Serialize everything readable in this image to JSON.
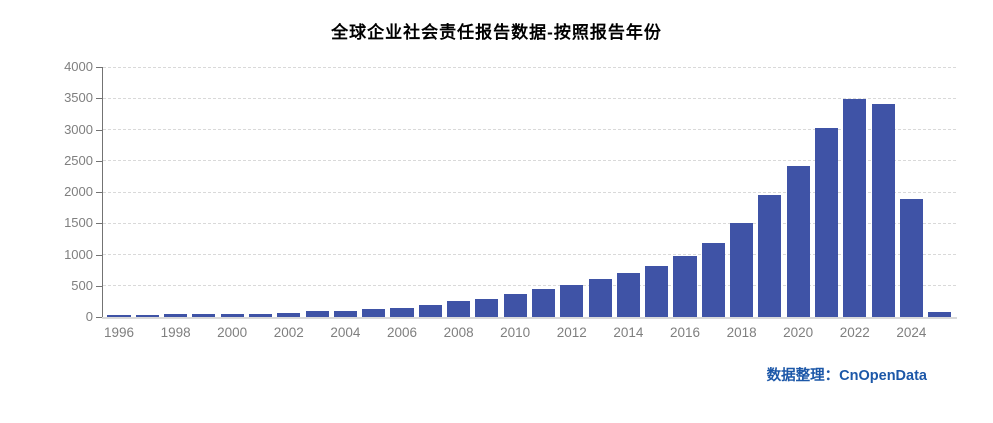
{
  "chart_data": {
    "type": "bar",
    "title": "全球企业社会责任报告数据-按照报告年份",
    "x": [
      1996,
      1997,
      1998,
      1999,
      2000,
      2001,
      2002,
      2003,
      2004,
      2005,
      2006,
      2007,
      2008,
      2009,
      2010,
      2011,
      2012,
      2013,
      2014,
      2015,
      2016,
      2017,
      2018,
      2019,
      2020,
      2021,
      2022,
      2023,
      2024,
      2025
    ],
    "values": [
      30,
      30,
      55,
      55,
      55,
      50,
      70,
      100,
      95,
      125,
      140,
      190,
      250,
      295,
      370,
      440,
      515,
      610,
      700,
      820,
      970,
      1180,
      1500,
      1950,
      2420,
      3020,
      3480,
      3400,
      1890,
      80
    ],
    "xlabel": "",
    "ylabel": "",
    "ylim": [
      0,
      4000
    ],
    "ytick_step": 500,
    "ytick_labels": [
      "0",
      "500",
      "1000",
      "1500",
      "2000",
      "2500",
      "3000",
      "3500",
      "4000"
    ],
    "xtick_labels": [
      "1996",
      "1998",
      "2000",
      "2002",
      "2004",
      "2006",
      "2008",
      "2010",
      "2012",
      "2014",
      "2016",
      "2018",
      "2020",
      "2022",
      "2024"
    ],
    "grid": "horizontal-dashed",
    "legend": "none",
    "bar_color": "#3F53A6"
  },
  "footer": {
    "text": "数据整理：CnOpenData"
  },
  "colors": {
    "bar": "#3F53A6",
    "gridline": "#D9D9D9",
    "y_axis": "#737373",
    "x_axis_baseline": "#D9D9D9",
    "tick_label": "#7F7F7F",
    "title": "#000000",
    "footer_text": "#1C57A8",
    "background": "#FFFFFF"
  }
}
